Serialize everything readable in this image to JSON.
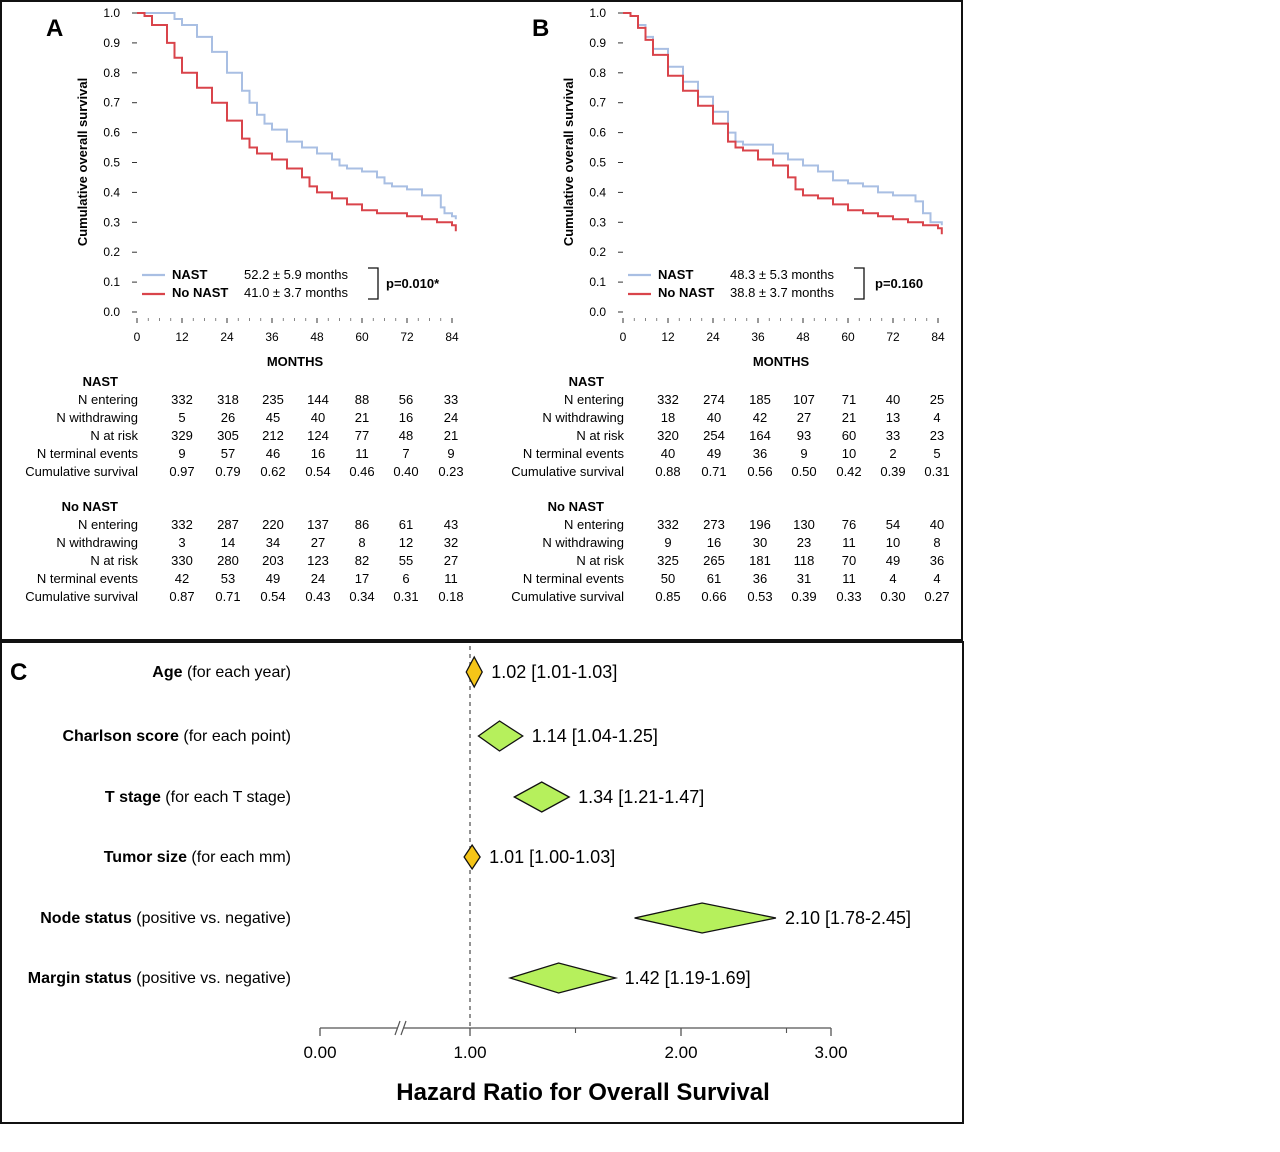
{
  "colors": {
    "nast": "#a9bfe3",
    "no_nast": "#d9444b",
    "diamond_yellow": "#f5c518",
    "diamond_green": "#b6f05c",
    "ref_line": "#777777",
    "frame": "#111111"
  },
  "chart_data": [
    {
      "panel": "A",
      "type": "line",
      "chart_style": "kaplan-meier step",
      "ylabel": "Cumulative overall survival",
      "xlabel": "MONTHS",
      "xlim": [
        0,
        85
      ],
      "ylim": [
        0,
        1
      ],
      "xticks": [
        0,
        12,
        24,
        36,
        48,
        60,
        72,
        84
      ],
      "yticks": [
        "0.0",
        "0.1",
        "0.2",
        "0.3",
        "0.4",
        "0.5",
        "0.6",
        "0.7",
        "0.8",
        "0.9",
        "1.0"
      ],
      "series": [
        {
          "name": "NAST",
          "stat": "52.2 ± 5.9 months",
          "x": [
            0,
            4,
            8,
            10,
            12,
            16,
            20,
            24,
            28,
            30,
            32,
            34,
            36,
            40,
            44,
            48,
            52,
            54,
            56,
            60,
            64,
            66,
            68,
            72,
            76,
            80,
            81,
            82,
            84,
            85
          ],
          "y": [
            1.0,
            1.0,
            1.0,
            0.98,
            0.96,
            0.92,
            0.87,
            0.8,
            0.74,
            0.7,
            0.66,
            0.63,
            0.61,
            0.57,
            0.55,
            0.53,
            0.51,
            0.49,
            0.48,
            0.47,
            0.45,
            0.43,
            0.42,
            0.41,
            0.39,
            0.39,
            0.35,
            0.33,
            0.32,
            0.31
          ]
        },
        {
          "name": "No NAST",
          "stat": "41.0 ± 3.7 months",
          "x": [
            0,
            2,
            4,
            8,
            10,
            12,
            16,
            20,
            24,
            28,
            30,
            32,
            36,
            40,
            44,
            46,
            48,
            52,
            56,
            60,
            64,
            68,
            72,
            76,
            80,
            84,
            85
          ],
          "y": [
            1.0,
            0.99,
            0.96,
            0.9,
            0.85,
            0.8,
            0.75,
            0.7,
            0.64,
            0.58,
            0.55,
            0.53,
            0.51,
            0.48,
            0.45,
            0.42,
            0.4,
            0.38,
            0.36,
            0.34,
            0.33,
            0.33,
            0.32,
            0.31,
            0.3,
            0.29,
            0.27
          ]
        }
      ],
      "pvalue": "p=0.010*"
    },
    {
      "panel": "B",
      "type": "line",
      "chart_style": "kaplan-meier step",
      "ylabel": "Cumulative overall survival",
      "xlabel": "MONTHS",
      "xlim": [
        0,
        85
      ],
      "ylim": [
        0,
        1
      ],
      "xticks": [
        0,
        12,
        24,
        36,
        48,
        60,
        72,
        84
      ],
      "yticks": [
        "0.0",
        "0.1",
        "0.2",
        "0.3",
        "0.4",
        "0.5",
        "0.6",
        "0.7",
        "0.8",
        "0.9",
        "1.0"
      ],
      "series": [
        {
          "name": "NAST",
          "stat": "48.3 ± 5.3 months",
          "x": [
            0,
            2,
            4,
            6,
            8,
            12,
            16,
            20,
            24,
            28,
            30,
            32,
            36,
            40,
            44,
            48,
            52,
            56,
            60,
            64,
            68,
            72,
            76,
            78,
            80,
            82,
            84,
            85
          ],
          "y": [
            1.0,
            0.99,
            0.96,
            0.92,
            0.88,
            0.82,
            0.77,
            0.72,
            0.67,
            0.6,
            0.57,
            0.56,
            0.56,
            0.53,
            0.51,
            0.49,
            0.47,
            0.44,
            0.43,
            0.42,
            0.4,
            0.39,
            0.39,
            0.37,
            0.33,
            0.3,
            0.3,
            0.29
          ]
        },
        {
          "name": "No NAST",
          "stat": "38.8 ± 3.7 months",
          "x": [
            0,
            2,
            4,
            6,
            8,
            12,
            16,
            20,
            24,
            28,
            30,
            32,
            36,
            40,
            44,
            46,
            48,
            52,
            56,
            60,
            64,
            68,
            72,
            76,
            80,
            84,
            85
          ],
          "y": [
            1.0,
            0.99,
            0.95,
            0.91,
            0.86,
            0.79,
            0.74,
            0.69,
            0.63,
            0.57,
            0.55,
            0.54,
            0.51,
            0.49,
            0.45,
            0.41,
            0.39,
            0.38,
            0.36,
            0.34,
            0.33,
            0.32,
            0.31,
            0.3,
            0.29,
            0.28,
            0.26
          ]
        }
      ],
      "pvalue": "p=0.160"
    },
    {
      "panel": "C",
      "type": "forest",
      "xlabel": "Hazard Ratio for Overall Survival",
      "xticks": [
        "0.00",
        "1.00",
        "2.00",
        "3.00"
      ],
      "reference": 1.0,
      "rows": [
        {
          "bold": "Age",
          "rest": " (for each year)",
          "hr": 1.02,
          "lo": 1.01,
          "hi": 1.03,
          "label": "1.02 [1.01-1.03]",
          "color": "yellow"
        },
        {
          "bold": "Charlson score",
          "rest": " (for each point)",
          "hr": 1.14,
          "lo": 1.04,
          "hi": 1.25,
          "label": "1.14 [1.04-1.25]",
          "color": "green"
        },
        {
          "bold": "T stage",
          "rest": " (for each T stage)",
          "hr": 1.34,
          "lo": 1.21,
          "hi": 1.47,
          "label": "1.34 [1.21-1.47]",
          "color": "green"
        },
        {
          "bold": "Tumor size",
          "rest": " (for each mm)",
          "hr": 1.01,
          "lo": 1.0,
          "hi": 1.03,
          "label": "1.01 [1.00-1.03]",
          "color": "yellow"
        },
        {
          "bold": "Node status",
          "rest": " (positive vs. negative)",
          "hr": 2.1,
          "lo": 1.78,
          "hi": 2.45,
          "label": "2.10 [1.78-2.45]",
          "color": "green"
        },
        {
          "bold": "Margin status",
          "rest": " (positive vs. negative)",
          "hr": 1.42,
          "lo": 1.19,
          "hi": 1.69,
          "label": "1.42 [1.19-1.69]",
          "color": "green"
        }
      ]
    }
  ],
  "risk_tables": {
    "A": {
      "groups": [
        {
          "title": "NAST",
          "rows": [
            {
              "label": "N entering",
              "values": [
                "332",
                "318",
                "235",
                "144",
                "88",
                "56",
                "33"
              ]
            },
            {
              "label": "N withdrawing",
              "values": [
                "5",
                "26",
                "45",
                "40",
                "21",
                "16",
                "24"
              ]
            },
            {
              "label": "N at risk",
              "values": [
                "329",
                "305",
                "212",
                "124",
                "77",
                "48",
                "21"
              ]
            },
            {
              "label": "N terminal events",
              "values": [
                "9",
                "57",
                "46",
                "16",
                "11",
                "7",
                "9"
              ]
            },
            {
              "label": "Cumulative survival",
              "values": [
                "0.97",
                "0.79",
                "0.62",
                "0.54",
                "0.46",
                "0.40",
                "0.23"
              ]
            }
          ]
        },
        {
          "title": "No NAST",
          "rows": [
            {
              "label": "N entering",
              "values": [
                "332",
                "287",
                "220",
                "137",
                "86",
                "61",
                "43"
              ]
            },
            {
              "label": "N withdrawing",
              "values": [
                "3",
                "14",
                "34",
                "27",
                "8",
                "12",
                "32"
              ]
            },
            {
              "label": "N at risk",
              "values": [
                "330",
                "280",
                "203",
                "123",
                "82",
                "55",
                "27"
              ]
            },
            {
              "label": "N terminal events",
              "values": [
                "42",
                "53",
                "49",
                "24",
                "17",
                "6",
                "11"
              ]
            },
            {
              "label": "Cumulative survival",
              "values": [
                "0.87",
                "0.71",
                "0.54",
                "0.43",
                "0.34",
                "0.31",
                "0.18"
              ]
            }
          ]
        }
      ]
    },
    "B": {
      "groups": [
        {
          "title": "NAST",
          "rows": [
            {
              "label": "N entering",
              "values": [
                "332",
                "274",
                "185",
                "107",
                "71",
                "40",
                "25"
              ]
            },
            {
              "label": "N withdrawing",
              "values": [
                "18",
                "40",
                "42",
                "27",
                "21",
                "13",
                "4"
              ]
            },
            {
              "label": "N at risk",
              "values": [
                "320",
                "254",
                "164",
                "93",
                "60",
                "33",
                "23"
              ]
            },
            {
              "label": "N terminal events",
              "values": [
                "40",
                "49",
                "36",
                "9",
                "10",
                "2",
                "5"
              ]
            },
            {
              "label": "Cumulative survival",
              "values": [
                "0.88",
                "0.71",
                "0.56",
                "0.50",
                "0.42",
                "0.39",
                "0.31"
              ]
            }
          ]
        },
        {
          "title": "No NAST",
          "rows": [
            {
              "label": "N entering",
              "values": [
                "332",
                "273",
                "196",
                "130",
                "76",
                "54",
                "40"
              ]
            },
            {
              "label": "N withdrawing",
              "values": [
                "9",
                "16",
                "30",
                "23",
                "11",
                "10",
                "8"
              ]
            },
            {
              "label": "N at risk",
              "values": [
                "325",
                "265",
                "181",
                "118",
                "70",
                "49",
                "36"
              ]
            },
            {
              "label": "N terminal events",
              "values": [
                "50",
                "61",
                "36",
                "31",
                "11",
                "4",
                "4"
              ]
            },
            {
              "label": "Cumulative survival",
              "values": [
                "0.85",
                "0.66",
                "0.53",
                "0.39",
                "0.33",
                "0.30",
                "0.27"
              ]
            }
          ]
        }
      ]
    }
  }
}
